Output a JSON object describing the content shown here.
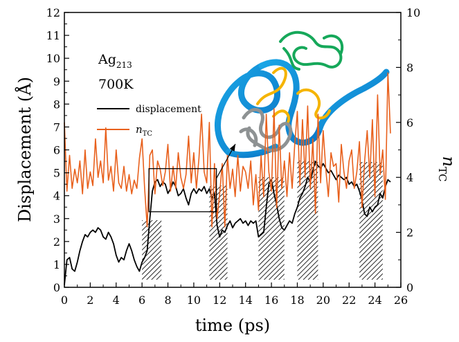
{
  "chart_data": {
    "type": "line",
    "xlabel": "time (ps)",
    "ylabel": "Displacement (Å)",
    "ylabel_right": {
      "main": "n",
      "sub": "TC"
    },
    "xlim": [
      0,
      26
    ],
    "ylim": [
      0,
      12
    ],
    "ylim_right": [
      0,
      10
    ],
    "x_ticks": [
      0,
      2,
      4,
      6,
      8,
      10,
      12,
      14,
      16,
      18,
      20,
      22,
      24,
      26
    ],
    "y_ticks": [
      0,
      1,
      2,
      3,
      4,
      5,
      6,
      7,
      8,
      9,
      10,
      11,
      12
    ],
    "y_ticks_right": [
      0,
      2,
      4,
      6,
      8,
      10
    ],
    "annotation": {
      "system_main": "Ag",
      "system_sub": "213",
      "temperature": "700K"
    },
    "legend": {
      "placement": "upper-left",
      "entries": [
        {
          "label_main": "displacement",
          "label_sub": "",
          "color": "#000000"
        },
        {
          "label_main": "n",
          "label_sub": "TC",
          "color": "#e8601c"
        }
      ]
    },
    "hatched_intervals": [
      [
        6.0,
        7.5
      ],
      [
        11.2,
        12.6
      ],
      [
        15.0,
        17.0
      ],
      [
        18.0,
        19.6
      ],
      [
        22.8,
        24.6
      ]
    ],
    "zoom_box": {
      "x": [
        6.0,
        11.0
      ],
      "y": [
        3.3,
        5.0
      ],
      "arrow_to_inset": true
    },
    "series": [
      {
        "name": "displacement",
        "axis": "left",
        "color": "#000000",
        "x": [
          0,
          0.2,
          0.4,
          0.6,
          0.8,
          1.0,
          1.2,
          1.4,
          1.6,
          1.8,
          2.0,
          2.2,
          2.4,
          2.6,
          2.8,
          3.0,
          3.2,
          3.4,
          3.6,
          3.8,
          4.0,
          4.2,
          4.4,
          4.6,
          4.8,
          5.0,
          5.2,
          5.4,
          5.6,
          5.8,
          6.0,
          6.2,
          6.4,
          6.6,
          6.8,
          7.0,
          7.2,
          7.4,
          7.6,
          7.8,
          8.0,
          8.2,
          8.4,
          8.6,
          8.8,
          9.0,
          9.2,
          9.4,
          9.6,
          9.8,
          10.0,
          10.2,
          10.4,
          10.6,
          10.8,
          11.0,
          11.2,
          11.4,
          11.6,
          11.8,
          12.0,
          12.2,
          12.4,
          12.6,
          12.8,
          13.0,
          13.2,
          13.4,
          13.6,
          13.8,
          14.0,
          14.2,
          14.4,
          14.6,
          14.8,
          15.0,
          15.2,
          15.4,
          15.6,
          15.8,
          16.0,
          16.2,
          16.4,
          16.6,
          16.8,
          17.0,
          17.2,
          17.4,
          17.6,
          17.8,
          18.0,
          18.2,
          18.4,
          18.6,
          18.8,
          19.0,
          19.2,
          19.4,
          19.6,
          19.8,
          20.0,
          20.2,
          20.4,
          20.6,
          20.8,
          21.0,
          21.2,
          21.4,
          21.6,
          21.8,
          22.0,
          22.2,
          22.4,
          22.6,
          22.8,
          23.0,
          23.2,
          23.4,
          23.6,
          23.8,
          24.0,
          24.2,
          24.4,
          24.6,
          24.8,
          25.0,
          25.2
        ],
        "y": [
          0.1,
          1.2,
          1.3,
          0.8,
          0.7,
          1.1,
          1.6,
          2.0,
          2.3,
          2.2,
          2.4,
          2.5,
          2.4,
          2.6,
          2.5,
          2.2,
          2.1,
          2.4,
          2.2,
          1.9,
          1.4,
          1.1,
          1.3,
          1.2,
          1.6,
          1.9,
          1.6,
          1.2,
          0.9,
          0.7,
          1.1,
          1.3,
          1.6,
          3.0,
          4.2,
          4.6,
          4.7,
          4.4,
          4.6,
          4.5,
          4.1,
          4.3,
          4.6,
          4.4,
          4.0,
          4.1,
          4.3,
          3.9,
          3.6,
          4.1,
          4.3,
          4.1,
          4.3,
          4.2,
          4.4,
          4.1,
          4.3,
          3.9,
          4.1,
          2.7,
          2.2,
          2.5,
          2.4,
          2.7,
          2.9,
          2.6,
          2.8,
          2.9,
          3.0,
          2.8,
          2.9,
          2.7,
          2.9,
          2.8,
          2.9,
          2.2,
          2.3,
          2.4,
          3.5,
          4.5,
          4.7,
          4.1,
          3.6,
          3.0,
          2.6,
          2.5,
          2.7,
          2.9,
          2.8,
          3.2,
          3.5,
          3.9,
          4.1,
          4.4,
          4.8,
          4.6,
          5.1,
          5.5,
          5.3,
          5.2,
          5.4,
          5.2,
          5.0,
          5.1,
          4.9,
          4.7,
          4.9,
          4.8,
          4.7,
          4.8,
          4.5,
          4.6,
          4.4,
          4.5,
          4.2,
          3.8,
          3.2,
          3.1,
          3.5,
          3.3,
          3.5,
          3.6,
          4.1,
          3.9,
          4.4,
          4.7,
          4.6
        ]
      },
      {
        "name": "n_TC",
        "axis": "right",
        "color": "#e8601c",
        "x": [
          0,
          0.2,
          0.4,
          0.6,
          0.8,
          1.0,
          1.2,
          1.4,
          1.6,
          1.8,
          2.0,
          2.2,
          2.4,
          2.6,
          2.8,
          3.0,
          3.2,
          3.4,
          3.6,
          3.8,
          4.0,
          4.2,
          4.4,
          4.6,
          4.8,
          5.0,
          5.2,
          5.4,
          5.6,
          5.8,
          6.0,
          6.2,
          6.4,
          6.6,
          6.8,
          7.0,
          7.2,
          7.4,
          7.6,
          7.8,
          8.0,
          8.2,
          8.4,
          8.6,
          8.8,
          9.0,
          9.2,
          9.4,
          9.6,
          9.8,
          10.0,
          10.2,
          10.4,
          10.6,
          10.8,
          11.0,
          11.2,
          11.4,
          11.6,
          11.8,
          12.0,
          12.2,
          12.4,
          12.6,
          12.8,
          13.0,
          13.2,
          13.4,
          13.6,
          13.8,
          14.0,
          14.2,
          14.4,
          14.6,
          14.8,
          15.0,
          15.2,
          15.4,
          15.6,
          15.8,
          16.0,
          16.2,
          16.4,
          16.6,
          16.8,
          17.0,
          17.2,
          17.4,
          17.6,
          17.8,
          18.0,
          18.2,
          18.4,
          18.6,
          18.8,
          19.0,
          19.2,
          19.4,
          19.6,
          19.8,
          20.0,
          20.2,
          20.4,
          20.6,
          20.8,
          21.0,
          21.2,
          21.4,
          21.6,
          21.8,
          22.0,
          22.2,
          22.4,
          22.6,
          22.8,
          23.0,
          23.2,
          23.4,
          23.6,
          23.8,
          24.0,
          24.2,
          24.4,
          24.6,
          24.8,
          25.0,
          25.2
        ],
        "y": [
          6.0,
          3.5,
          4.8,
          3.6,
          4.3,
          3.8,
          4.6,
          3.4,
          5.0,
          3.6,
          4.2,
          3.7,
          5.4,
          4.0,
          4.6,
          3.8,
          5.8,
          3.9,
          4.4,
          3.5,
          5.0,
          3.8,
          3.6,
          4.4,
          3.5,
          4.1,
          3.4,
          3.9,
          3.6,
          4.7,
          5.4,
          3.6,
          2.2,
          4.8,
          5.0,
          3.4,
          4.6,
          4.3,
          3.7,
          4.2,
          5.2,
          3.5,
          4.4,
          3.6,
          4.9,
          4.0,
          3.6,
          4.1,
          5.5,
          3.8,
          4.9,
          3.6,
          4.7,
          6.3,
          4.2,
          3.8,
          6.0,
          2.2,
          4.5,
          2.5,
          3.4,
          4.5,
          2.2,
          4.8,
          3.6,
          4.3,
          3.3,
          4.8,
          3.5,
          4.4,
          4.2,
          3.6,
          4.6,
          3.0,
          4.1,
          2.8,
          4.8,
          3.3,
          6.3,
          4.2,
          3.5,
          6.5,
          2.9,
          5.9,
          3.6,
          4.6,
          3.3,
          4.9,
          3.6,
          5.2,
          6.4,
          3.7,
          6.1,
          4.0,
          6.6,
          3.6,
          5.4,
          2.7,
          6.3,
          3.8,
          5.7,
          4.3,
          3.3,
          4.9,
          4.4,
          4.5,
          3.1,
          5.2,
          4.2,
          3.6,
          4.6,
          5.0,
          3.6,
          4.2,
          5.3,
          2.9,
          4.6,
          5.7,
          4.0,
          6.1,
          3.3,
          7.0,
          4.1,
          5.0,
          3.2,
          7.8,
          5.6
        ]
      }
    ]
  }
}
